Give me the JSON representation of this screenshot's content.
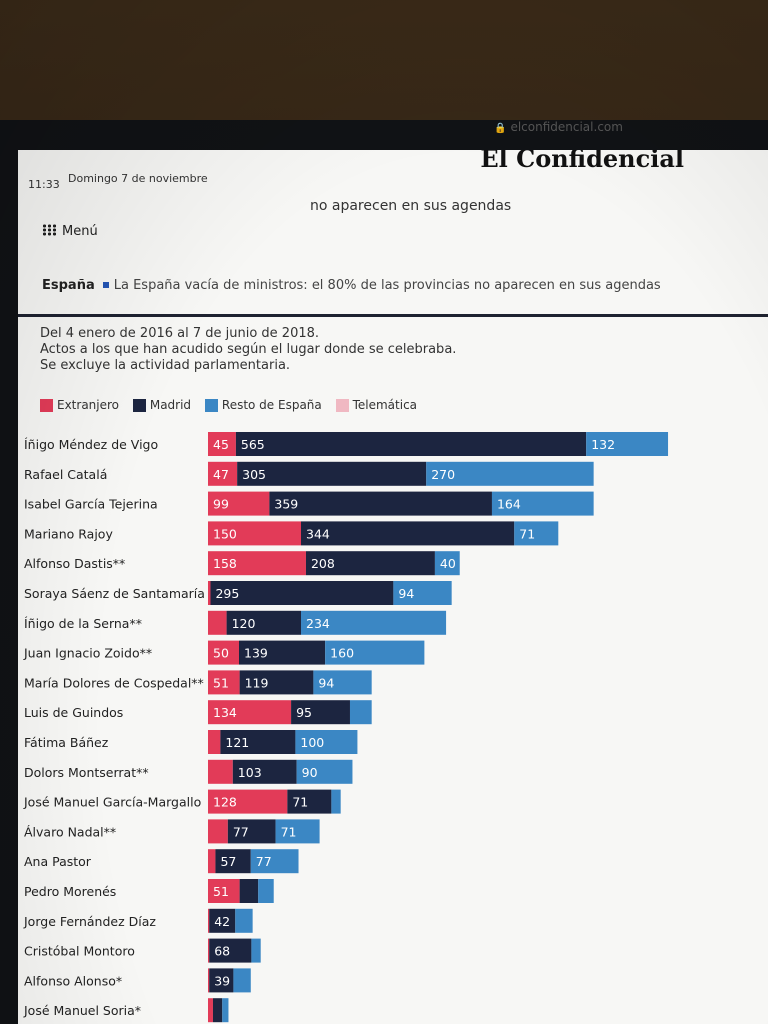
{
  "status": {
    "time": "11:33",
    "date": "Domingo 7 de noviembre"
  },
  "browser": {
    "url": "elconfidencial.com"
  },
  "site": {
    "logo": "El Confidencial",
    "menu_label": "Menú"
  },
  "article": {
    "section": "España",
    "headline_tail": "no aparecen en sus agendas",
    "breadcrumb_title": "La España vacía de ministros: el 80% de las provincias no aparecen en sus agendas"
  },
  "notes": [
    "Del 4 enero de 2016 al 7 de junio de 2018.",
    "Actos a los que han acudido según el lugar donde se celebraba.",
    "Se excluye la actividad parlamentaria."
  ],
  "colors": {
    "extranjero": "#e23b58",
    "madrid": "#1c2540",
    "resto": "#3b87c4",
    "telematica": "#f0b8c2"
  },
  "chart_data": {
    "type": "bar",
    "orientation": "horizontal",
    "stacked": true,
    "legend": [
      "Extranjero",
      "Madrid",
      "Resto de España",
      "Telemática"
    ],
    "legend_placement": "top-left",
    "categories": [
      "Íñigo Méndez de Vigo",
      "Rafael Catalá",
      "Isabel García Tejerina",
      "Mariano Rajoy",
      "Alfonso Dastis**",
      "Soraya Sáenz de Santamaría",
      "Íñigo de la Serna**",
      "Juan Ignacio Zoido**",
      "María Dolores de Cospedal**",
      "Luis de Guindos",
      "Fátima Báñez",
      "Dolors Montserrat**",
      "José Manuel García-Margallo",
      "Álvaro Nadal**",
      "Ana Pastor",
      "Pedro Morenés",
      "Jorge Fernández Díaz",
      "Cristóbal Montoro",
      "Alfonso Alonso*",
      "José Manuel Soria*"
    ],
    "series": [
      {
        "name": "Extranjero",
        "values": [
          45,
          47,
          99,
          150,
          158,
          4,
          30,
          50,
          51,
          134,
          20,
          40,
          128,
          32,
          12,
          51,
          2,
          2,
          2,
          8
        ]
      },
      {
        "name": "Madrid",
        "values": [
          565,
          305,
          359,
          344,
          208,
          295,
          120,
          139,
          119,
          95,
          121,
          103,
          71,
          77,
          57,
          30,
          42,
          68,
          39,
          15
        ]
      },
      {
        "name": "Resto de España",
        "values": [
          132,
          270,
          164,
          71,
          40,
          94,
          234,
          160,
          94,
          35,
          100,
          90,
          15,
          71,
          77,
          25,
          28,
          15,
          28,
          10
        ]
      },
      {
        "name": "Telemática",
        "values": [
          0,
          0,
          0,
          0,
          0,
          0,
          0,
          0,
          0,
          0,
          0,
          0,
          0,
          0,
          0,
          0,
          0,
          0,
          0,
          0
        ]
      }
    ],
    "data_labels": [
      [
        "45",
        "565",
        "132"
      ],
      [
        "47",
        "305",
        "270"
      ],
      [
        "99",
        "359",
        "164"
      ],
      [
        "150",
        "344",
        "71"
      ],
      [
        "158",
        "208",
        "40"
      ],
      [
        "",
        "295",
        "94"
      ],
      [
        "",
        "120",
        "234"
      ],
      [
        "50",
        "139",
        "160"
      ],
      [
        "51",
        "119",
        "94"
      ],
      [
        "134",
        "95",
        ""
      ],
      [
        "",
        "121",
        "100"
      ],
      [
        "",
        "103",
        "90"
      ],
      [
        "128",
        "71",
        ""
      ],
      [
        "",
        "77",
        "71"
      ],
      [
        "",
        "57",
        "77"
      ],
      [
        "51",
        "",
        ""
      ],
      [
        "",
        "42",
        ""
      ],
      [
        "",
        "68",
        ""
      ],
      [
        "",
        "39",
        ""
      ],
      [
        "",
        "",
        ""
      ]
    ]
  }
}
